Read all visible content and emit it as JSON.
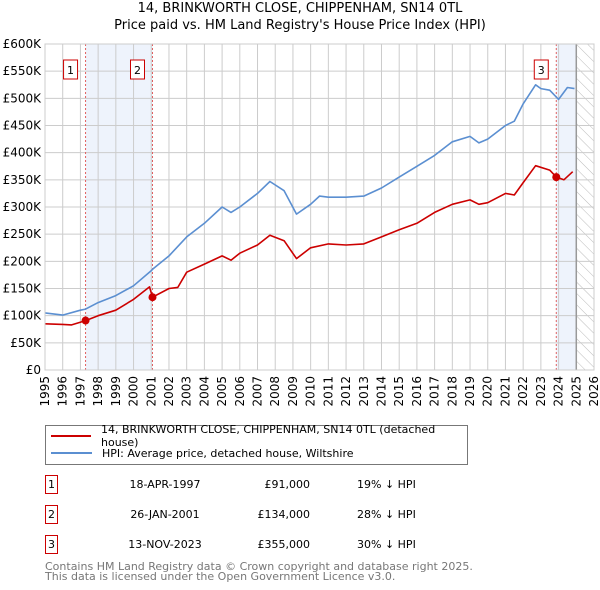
{
  "title_line1": "14, BRINKWORTH CLOSE, CHIPPENHAM, SN14 0TL",
  "title_line2": "Price paid vs. HM Land Registry's House Price Index (HPI)",
  "colors": {
    "property": "#cc0000",
    "hpi": "#5b8fd1",
    "shade": "#eef3fc",
    "grid": "#cccccc"
  },
  "chart_data": {
    "type": "line",
    "xlim": [
      1995,
      2026
    ],
    "ylim": [
      0,
      600000
    ],
    "x_ticks": [
      "1995",
      "1996",
      "1997",
      "1998",
      "1999",
      "2000",
      "2001",
      "2002",
      "2003",
      "2004",
      "2005",
      "2006",
      "2007",
      "2008",
      "2009",
      "2010",
      "2011",
      "2012",
      "2013",
      "2014",
      "2015",
      "2016",
      "2017",
      "2018",
      "2019",
      "2020",
      "2021",
      "2022",
      "2023",
      "2024",
      "2025",
      "2026"
    ],
    "y_ticks": [
      {
        "value": 0,
        "label": "£0"
      },
      {
        "value": 50000,
        "label": "£50K"
      },
      {
        "value": 100000,
        "label": "£100K"
      },
      {
        "value": 150000,
        "label": "£150K"
      },
      {
        "value": 200000,
        "label": "£200K"
      },
      {
        "value": 250000,
        "label": "£250K"
      },
      {
        "value": 300000,
        "label": "£300K"
      },
      {
        "value": 350000,
        "label": "£350K"
      },
      {
        "value": 400000,
        "label": "£400K"
      },
      {
        "value": 450000,
        "label": "£450K"
      },
      {
        "value": 500000,
        "label": "£500K"
      },
      {
        "value": 550000,
        "label": "£550K"
      },
      {
        "value": 600000,
        "label": "£600K"
      }
    ],
    "grid": true,
    "series": [
      {
        "name": "14, BRINKWORTH CLOSE, CHIPPENHAM, SN14 0TL (detached house)",
        "x": [
          1995,
          1996,
          1996.5,
          1997.29,
          1998,
          1999,
          2000,
          2000.9,
          2001.07,
          2002,
          2002.5,
          2003,
          2004,
          2005,
          2005.5,
          2006,
          2007,
          2007.7,
          2008.5,
          2009.2,
          2010,
          2011,
          2012,
          2013,
          2014,
          2015,
          2016,
          2017,
          2018,
          2019,
          2019.5,
          2020,
          2021,
          2021.5,
          2022,
          2022.7,
          2023.5,
          2023.87,
          2024.3,
          2024.8
        ],
        "y": [
          85000,
          84000,
          83000,
          91000,
          100000,
          110000,
          130000,
          153000,
          134000,
          150000,
          152000,
          180000,
          195000,
          210000,
          202000,
          215000,
          230000,
          248000,
          238000,
          205000,
          225000,
          232000,
          230000,
          232000,
          245000,
          258000,
          270000,
          290000,
          305000,
          313000,
          305000,
          308000,
          325000,
          322000,
          345000,
          376000,
          368000,
          355000,
          350000,
          365000
        ]
      },
      {
        "name": "HPI: Average price, detached house, Wiltshire",
        "x": [
          1995,
          1996,
          1997,
          1997.29,
          1998,
          1999,
          2000,
          2001,
          2001.1,
          2002,
          2003,
          2004,
          2005,
          2005.5,
          2006,
          2007,
          2007.7,
          2008.5,
          2009.2,
          2010,
          2010.5,
          2011,
          2012,
          2013,
          2014,
          2015,
          2016,
          2017,
          2018,
          2019,
          2019.5,
          2020,
          2021,
          2021.5,
          2022,
          2022.7,
          2023,
          2023.5,
          2024,
          2024.5,
          2024.9
        ],
        "y": [
          105000,
          101000,
          110000,
          112000,
          124000,
          137000,
          155000,
          183000,
          186000,
          210000,
          245000,
          270000,
          300000,
          290000,
          300000,
          325000,
          347000,
          330000,
          287000,
          305000,
          320000,
          318000,
          318000,
          320000,
          335000,
          355000,
          375000,
          395000,
          420000,
          430000,
          418000,
          425000,
          450000,
          458000,
          490000,
          525000,
          518000,
          515000,
          498000,
          520000,
          518000
        ]
      }
    ],
    "sales": [
      {
        "id": "1",
        "x": 1997.29,
        "y": 91000,
        "date": "18-APR-1997",
        "price": "£91,000",
        "hpi": "19% ↓ HPI"
      },
      {
        "id": "2",
        "x": 2001.07,
        "y": 134000,
        "date": "26-JAN-2001",
        "price": "£134,000",
        "hpi": "28% ↓ HPI"
      },
      {
        "id": "3",
        "x": 2023.87,
        "y": 355000,
        "date": "13-NOV-2023",
        "price": "£355,000",
        "hpi": "30% ↓ HPI"
      }
    ],
    "shaded_ranges": [
      [
        1997.29,
        2001.07
      ],
      [
        2023.87,
        2025.0
      ]
    ],
    "hatched_range": [
      2025.0,
      2026
    ]
  },
  "legend": {
    "property": "14, BRINKWORTH CLOSE, CHIPPENHAM, SN14 0TL (detached house)",
    "hpi": "HPI: Average price, detached house, Wiltshire"
  },
  "footer": {
    "line1": "Contains HM Land Registry data © Crown copyright and database right 2025.",
    "line2": "This data is licensed under the Open Government Licence v3.0."
  }
}
